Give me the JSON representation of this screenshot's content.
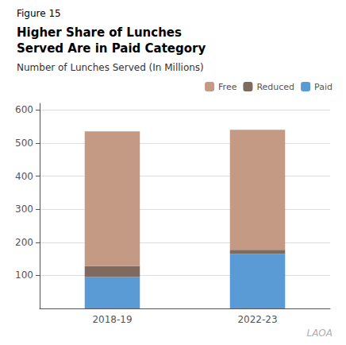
{
  "chart_data": {
    "type": "bar",
    "title": "Higher Share of Lunches\nServed Are in Paid Category",
    "subtitle": "Number of Lunches Served (In Millions)",
    "annotations": [
      "Figure 15",
      "LAOA"
    ],
    "categories": [
      "2018-19",
      "2022-23"
    ],
    "series": [
      {
        "name": "Paid",
        "color": "#5b9bd5",
        "values": [
          95,
          165
        ]
      },
      {
        "name": "Reduced",
        "color": "#7f6b5e",
        "values": [
          33,
          12
        ]
      },
      {
        "name": "Free",
        "color": "#c49a85",
        "values": [
          407,
          363
        ]
      }
    ],
    "stacked": true,
    "ylim": [
      0,
      620
    ],
    "yticks": [
      100,
      200,
      300,
      400,
      500,
      600
    ],
    "grid": true,
    "legend": "upper right"
  }
}
